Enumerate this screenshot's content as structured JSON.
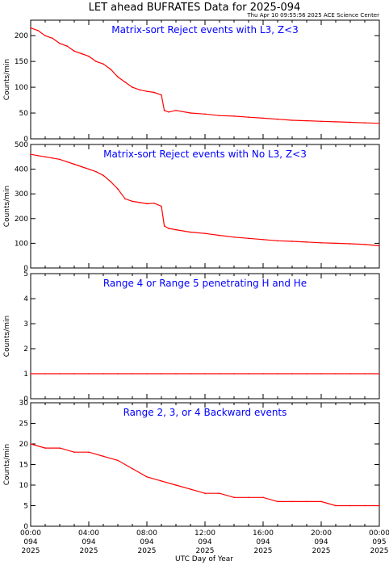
{
  "header": {
    "title": "LET ahead BUFRATES Data for 2025-094",
    "timestamp": "Thu Apr 10 09:55:56 2025 ACE Science Center"
  },
  "colors": {
    "series": "#ff0000",
    "panel_title": "#0000ff",
    "axes": "#000000",
    "background": "#ffffff"
  },
  "chart_data": [
    {
      "type": "line",
      "title": "Matrix-sort Reject events with L3, Z<3",
      "ylabel": "Counts/min",
      "ylim": [
        0,
        230
      ],
      "yticks": [
        0,
        50,
        100,
        150,
        200
      ],
      "xlim": [
        0,
        24
      ],
      "series": [
        {
          "x": [
            0,
            0.5,
            1,
            1.5,
            2,
            2.5,
            3,
            3.5,
            4,
            4.5,
            5,
            5.5,
            6,
            6.5,
            7,
            7.5,
            8,
            8.5,
            9,
            9.2,
            9.5,
            10,
            11,
            12,
            13,
            14,
            15,
            16,
            17,
            18,
            19,
            20,
            21,
            22,
            23,
            24
          ],
          "values": [
            215,
            210,
            200,
            195,
            185,
            180,
            170,
            165,
            160,
            150,
            145,
            135,
            120,
            110,
            100,
            95,
            92,
            90,
            85,
            55,
            52,
            55,
            50,
            48,
            45,
            44,
            42,
            40,
            38,
            36,
            35,
            34,
            33,
            32,
            31,
            30
          ]
        }
      ]
    },
    {
      "type": "line",
      "title": "Matrix-sort Reject events with No L3, Z<3",
      "ylabel": "Counts/min",
      "ylim": [
        0,
        500
      ],
      "yticks": [
        0,
        100,
        200,
        300,
        400,
        500
      ],
      "xlim": [
        0,
        24
      ],
      "series": [
        {
          "x": [
            0,
            0.5,
            1,
            1.5,
            2,
            2.5,
            3,
            3.5,
            4,
            4.5,
            5,
            5.5,
            6,
            6.5,
            7,
            7.5,
            8,
            8.5,
            9,
            9.2,
            9.5,
            10,
            11,
            12,
            13,
            14,
            15,
            16,
            17,
            18,
            19,
            20,
            21,
            22,
            23,
            24
          ],
          "values": [
            460,
            455,
            450,
            445,
            440,
            430,
            420,
            410,
            400,
            390,
            375,
            350,
            320,
            280,
            270,
            265,
            260,
            262,
            250,
            170,
            160,
            155,
            145,
            140,
            132,
            125,
            120,
            115,
            110,
            108,
            105,
            102,
            100,
            98,
            95,
            90
          ]
        }
      ]
    },
    {
      "type": "line",
      "title": "Range 4 or Range 5 penetrating H and He",
      "ylabel": "Counts/min",
      "ylim": [
        0,
        5
      ],
      "yticks": [
        0,
        1,
        2,
        3,
        4,
        5
      ],
      "xlim": [
        0,
        24
      ],
      "series": [
        {
          "x": [
            0,
            1,
            2,
            3,
            4,
            5,
            6,
            7,
            8,
            9,
            10,
            11,
            12,
            13,
            14,
            15,
            16,
            17,
            18,
            19,
            20,
            21,
            22,
            23,
            24
          ],
          "values": [
            1,
            1,
            1,
            1,
            1,
            1,
            1,
            1,
            1,
            1,
            1,
            1,
            1,
            1,
            1,
            1,
            1,
            1,
            1,
            1,
            1,
            1,
            1,
            1,
            1
          ]
        }
      ]
    },
    {
      "type": "line",
      "title": "Range 2, 3, or 4 Backward events",
      "ylabel": "Counts/min",
      "ylim": [
        0,
        30
      ],
      "yticks": [
        0,
        5,
        10,
        15,
        20,
        25,
        30
      ],
      "xlim": [
        0,
        24
      ],
      "series": [
        {
          "x": [
            0,
            1,
            2,
            3,
            4,
            5,
            6,
            7,
            8,
            9,
            10,
            11,
            12,
            13,
            14,
            15,
            16,
            17,
            18,
            19,
            20,
            21,
            22,
            23,
            24
          ],
          "values": [
            20,
            19,
            19,
            18,
            18,
            17,
            16,
            14,
            12,
            11,
            10,
            9,
            8,
            8,
            7,
            7,
            7,
            6,
            6,
            6,
            6,
            5,
            5,
            5,
            5
          ]
        }
      ]
    }
  ],
  "x_axis": {
    "ticks": [
      {
        "time": "00:00",
        "doy": "094",
        "year": "2025"
      },
      {
        "time": "04:00",
        "doy": "094",
        "year": "2025"
      },
      {
        "time": "08:00",
        "doy": "094",
        "year": "2025"
      },
      {
        "time": "12:00",
        "doy": "094",
        "year": "2025"
      },
      {
        "time": "16:00",
        "doy": "094",
        "year": "2025"
      },
      {
        "time": "20:00",
        "doy": "094",
        "year": "2025"
      },
      {
        "time": "00:00",
        "doy": "095",
        "year": "2025"
      }
    ],
    "label": "UTC Day of Year"
  }
}
